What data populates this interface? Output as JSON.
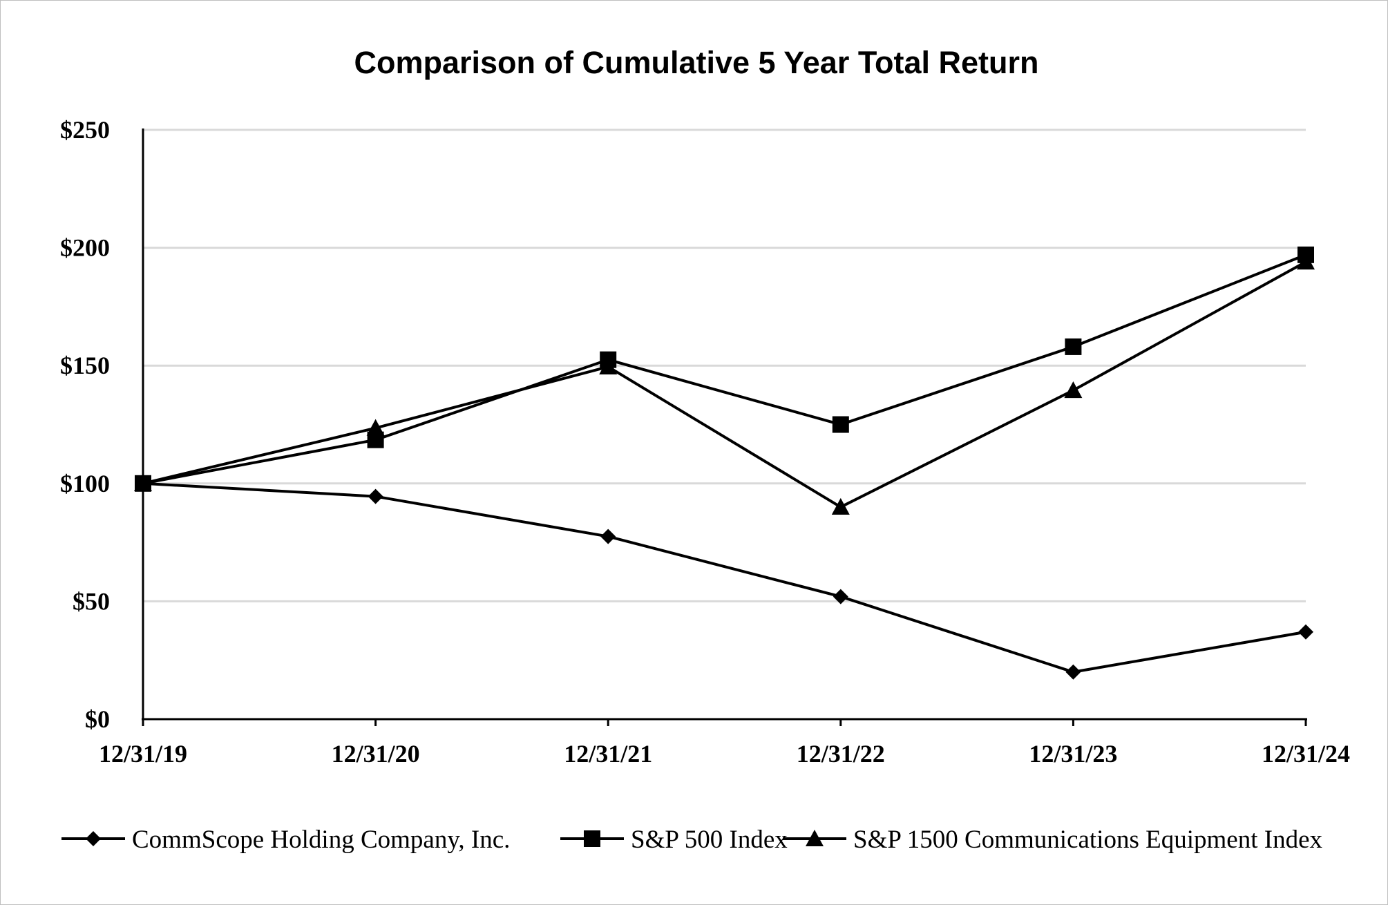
{
  "chart_data": {
    "type": "line",
    "title": "Comparison of Cumulative 5 Year Total Return",
    "categories": [
      "12/31/19",
      "12/31/20",
      "12/31/21",
      "12/31/22",
      "12/31/23",
      "12/31/24"
    ],
    "y_tick_labels": [
      "$0",
      "$50",
      "$100",
      "$150",
      "$200",
      "$250"
    ],
    "y_ticks": [
      0,
      50,
      100,
      150,
      200,
      250
    ],
    "ylim": [
      0,
      250
    ],
    "grid": "horizontal",
    "legend_position": "bottom",
    "series": [
      {
        "name": "CommScope Holding Company, Inc.",
        "marker": "diamond",
        "values": [
          100,
          94.5,
          77.5,
          52,
          20,
          37
        ]
      },
      {
        "name": "S&P 500 Index",
        "marker": "square",
        "values": [
          100,
          118.5,
          152.5,
          125,
          158,
          197
        ]
      },
      {
        "name": "S&P 1500 Communications Equipment Index",
        "marker": "triangle",
        "values": [
          100,
          123.5,
          149.5,
          90,
          139.5,
          194
        ]
      }
    ],
    "colors": {
      "line": "#000000",
      "grid": "#d9d9d9",
      "axis": "#000000"
    }
  }
}
